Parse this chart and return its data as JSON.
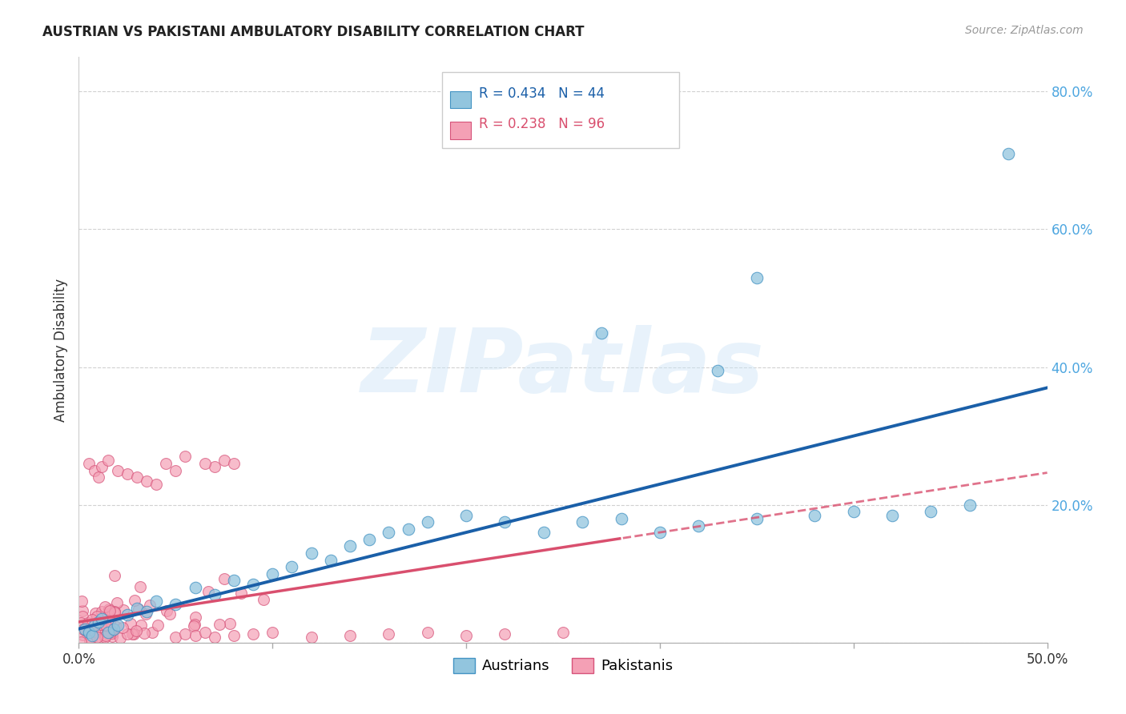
{
  "title": "AUSTRIAN VS PAKISTANI AMBULATORY DISABILITY CORRELATION CHART",
  "source": "Source: ZipAtlas.com",
  "ylabel": "Ambulatory Disability",
  "xlim": [
    0.0,
    0.5
  ],
  "ylim": [
    0.0,
    0.85
  ],
  "austrians_color": "#92c5de",
  "pakistanis_color": "#f4a0b5",
  "austrians_edge": "#4393c3",
  "pakistanis_edge": "#d6537a",
  "regression_austrians_color": "#1a5fa8",
  "regression_pakistanis_color": "#d94f6e",
  "legend_R_austrians": "R = 0.434",
  "legend_N_austrians": "N = 44",
  "legend_R_pakistanis": "R = 0.238",
  "legend_N_pakistanis": "N = 96",
  "background_color": "#ffffff",
  "grid_color": "#cccccc",
  "watermark": "ZIPatlas",
  "ytick_color": "#4da6e0",
  "xtick_color": "#333333"
}
